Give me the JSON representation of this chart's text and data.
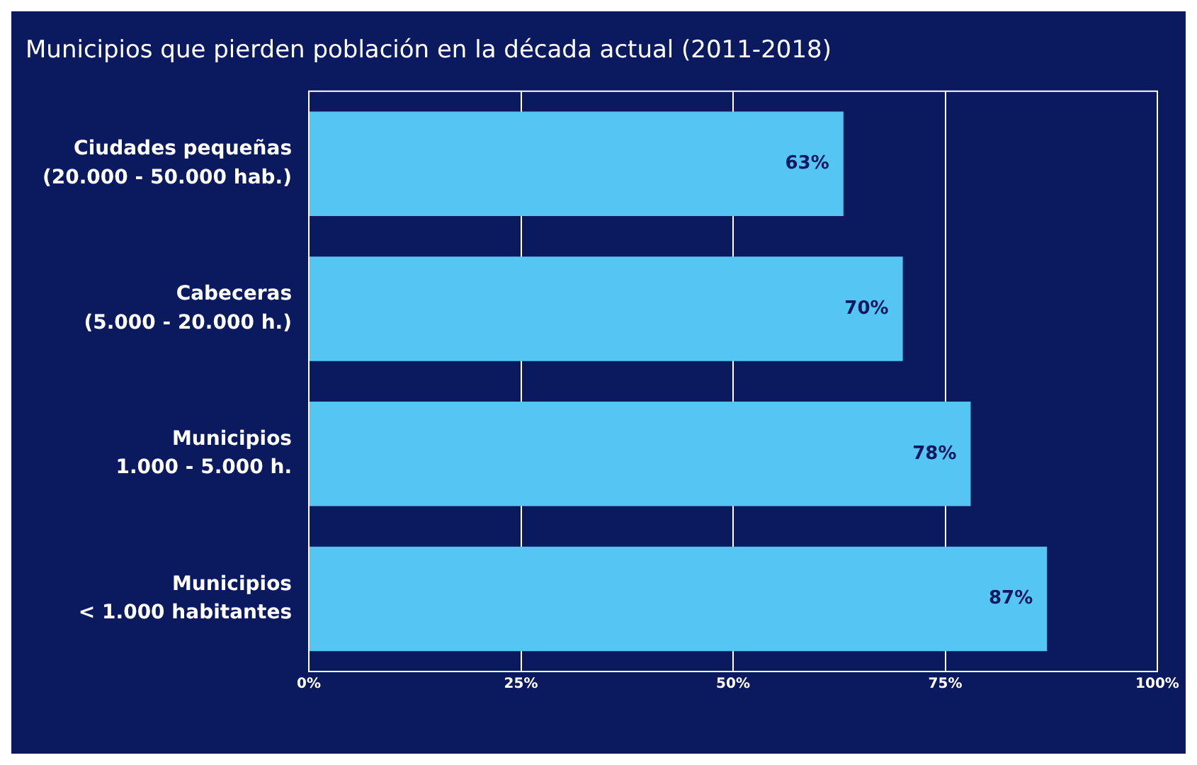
{
  "chart_data": {
    "type": "bar",
    "orientation": "horizontal",
    "title": "Municipios que pierden población en la década actual (2011-2018)",
    "categories": [
      "Ciudades pequeñas\n(20.000 - 50.000 hab.)",
      "Cabeceras\n(5.000 - 20.000 h.)",
      "Municipios\n1.000 - 5.000 h.",
      "Municipios\n< 1.000 habitantes"
    ],
    "values": [
      63,
      70,
      78,
      87
    ],
    "value_labels": [
      "63%",
      "70%",
      "78%",
      "87%"
    ],
    "color": "#55c5f4",
    "xlim": [
      0,
      100
    ],
    "xticks": [
      {
        "value": 0,
        "label": "0%"
      },
      {
        "value": 25,
        "label": "25%"
      },
      {
        "value": 50,
        "label": "50%"
      },
      {
        "value": 75,
        "label": "75%"
      },
      {
        "value": 100,
        "label": "100%"
      }
    ],
    "grid": "x",
    "legend": false
  }
}
